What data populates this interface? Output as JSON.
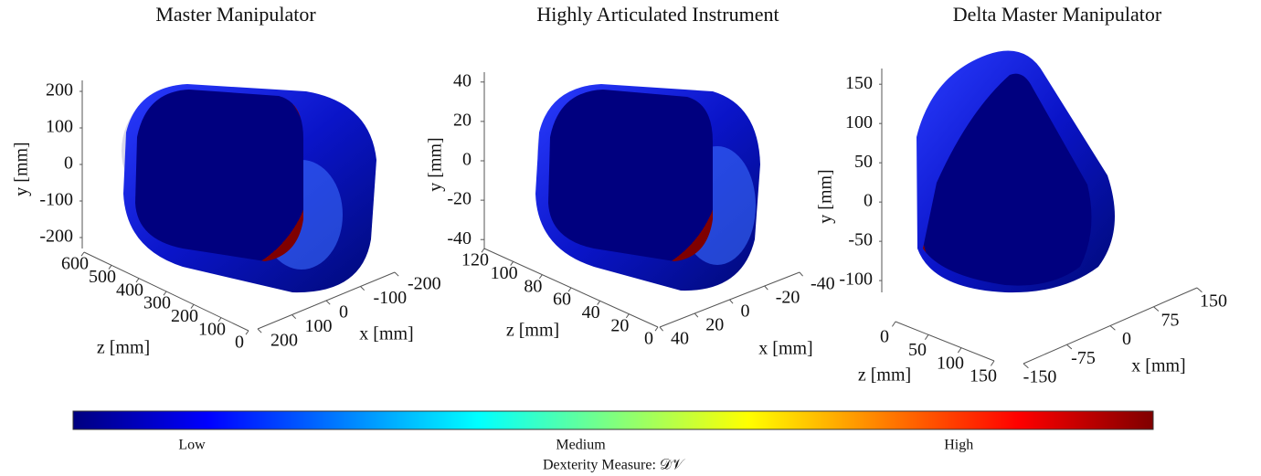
{
  "chart_data": [
    {
      "type": "surface3d",
      "title": "Master Manipulator",
      "xlabel": "x [mm]",
      "ylabel": "y [mm]",
      "zlabel": "z [mm]",
      "xlim": [
        -200,
        200
      ],
      "xticks": [
        -200,
        -100,
        0,
        100,
        200
      ],
      "ylim": [
        -230,
        230
      ],
      "yticks": [
        -200,
        -100,
        0,
        100,
        200
      ],
      "zlim": [
        0,
        600
      ],
      "zticks": [
        0,
        100,
        200,
        300,
        400,
        500,
        600
      ]
    },
    {
      "type": "surface3d",
      "title": "Highly Articulated Instrument",
      "xlabel": "x [mm]",
      "ylabel": "y [mm]",
      "zlabel": "z [mm]",
      "xlim": [
        -40,
        40
      ],
      "xticks": [
        -40,
        -20,
        0,
        20,
        40
      ],
      "ylim": [
        -45,
        45
      ],
      "yticks": [
        -40,
        -20,
        0,
        20,
        40
      ],
      "zlim": [
        0,
        120
      ],
      "zticks": [
        0,
        20,
        40,
        60,
        80,
        100,
        120
      ]
    },
    {
      "type": "surface3d",
      "title": "Delta Master Manipulator",
      "xlabel": "x [mm]",
      "ylabel": "y [mm]",
      "zlabel": "z [mm]",
      "xlim": [
        -150,
        150
      ],
      "xticks": [
        -150,
        -75,
        0,
        75,
        150
      ],
      "ylim": [
        -115,
        170
      ],
      "yticks": [
        -100,
        -50,
        0,
        50,
        100,
        150
      ],
      "zlim": [
        0,
        150
      ],
      "zticks": [
        0,
        50,
        100,
        150
      ]
    },
    {
      "type": "colorbar",
      "label": "Dexterity Measure: 𝒟𝒱",
      "lim": [
        0,
        1
      ],
      "ticks": [
        {
          "value": 0.11,
          "label": "Low"
        },
        {
          "value": 0.47,
          "label": "Medium"
        },
        {
          "value": 0.82,
          "label": "High"
        }
      ],
      "colors": [
        "#00007f",
        "#0000ff",
        "#007fff",
        "#00ffff",
        "#7fff7f",
        "#ffff00",
        "#ff7f00",
        "#ff0000",
        "#7f0000"
      ]
    }
  ]
}
